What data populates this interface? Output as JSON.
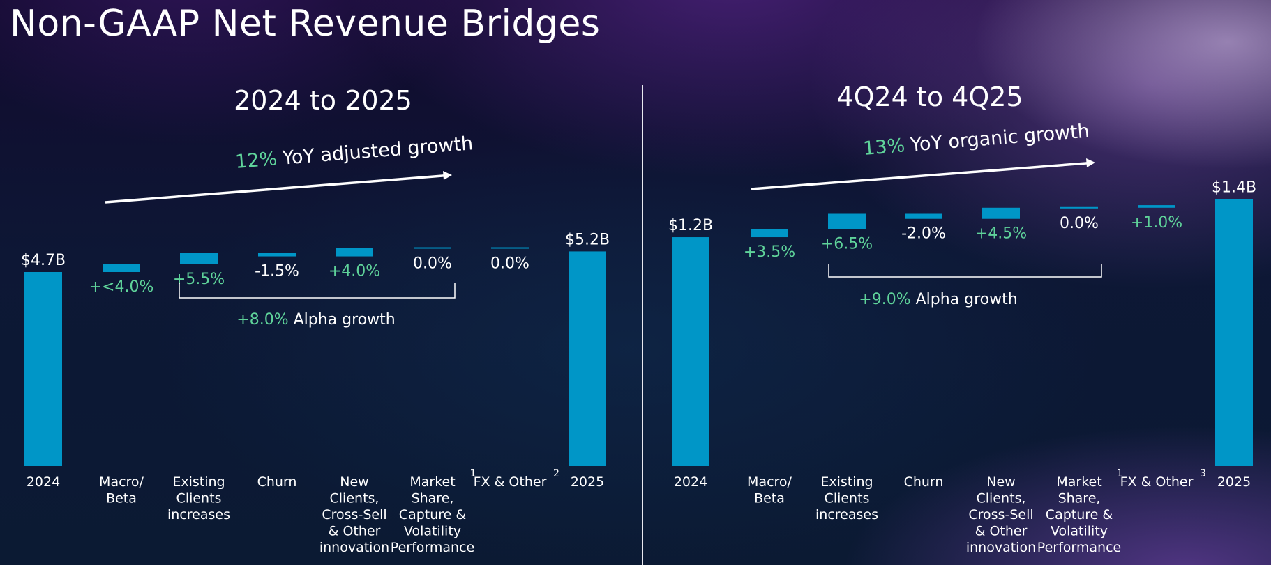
{
  "page": {
    "title": "Non-GAAP Net Revenue Bridges"
  },
  "colors": {
    "bar": "#0096c7",
    "positive_text": "#5fd39a",
    "neutral_text": "#ffffff",
    "divider": "#e8e8ef"
  },
  "chart_data": [
    {
      "type": "bar",
      "subtype": "waterfall",
      "title": "2024 to 2025",
      "growth_annotation": {
        "value": "12%",
        "text": "YoY adjusted growth"
      },
      "bracket_annotation": {
        "value": "+8.0%",
        "text": "Alpha growth",
        "spans": [
          "Existing Clients increases",
          "Market Share, Capture & Volatility Performance"
        ]
      },
      "categories": [
        {
          "label": [
            "2024"
          ],
          "sup": ""
        },
        {
          "label": [
            "Macro/",
            "Beta"
          ],
          "sup": ""
        },
        {
          "label": [
            "Existing",
            "Clients",
            "increases"
          ],
          "sup": ""
        },
        {
          "label": [
            "Churn"
          ],
          "sup": ""
        },
        {
          "label": [
            "New",
            "Clients,",
            "Cross-Sell",
            "& Other",
            "innovation"
          ],
          "sup": ""
        },
        {
          "label": [
            "Market",
            "Share,",
            "Capture &",
            "Volatility",
            "Performance"
          ],
          "sup": "1"
        },
        {
          "label": [
            "FX & Other"
          ],
          "sup": "2"
        },
        {
          "label": [
            "2025"
          ],
          "sup": ""
        }
      ],
      "steps": [
        {
          "kind": "total",
          "value": 4.7,
          "label": "$4.7B"
        },
        {
          "kind": "delta",
          "pct": 4.0,
          "label": "+<4.0%",
          "positive": true
        },
        {
          "kind": "delta",
          "pct": 5.5,
          "label": "+5.5%",
          "positive": true
        },
        {
          "kind": "delta",
          "pct": -1.5,
          "label": "-1.5%",
          "positive": false
        },
        {
          "kind": "delta",
          "pct": 4.0,
          "label": "+4.0%",
          "positive": true
        },
        {
          "kind": "delta",
          "pct": 0.0,
          "label": "0.0%",
          "positive": false
        },
        {
          "kind": "delta",
          "pct": 0.0,
          "label": "0.0%",
          "positive": false
        },
        {
          "kind": "total",
          "value": 5.2,
          "label": "$5.2B"
        }
      ]
    },
    {
      "type": "bar",
      "subtype": "waterfall",
      "title": "4Q24 to 4Q25",
      "growth_annotation": {
        "value": "13%",
        "text": "YoY organic growth"
      },
      "bracket_annotation": {
        "value": "+9.0%",
        "text": "Alpha growth",
        "spans": [
          "Existing Clients increases",
          "Market Share, Capture & Volatility Performance"
        ]
      },
      "categories": [
        {
          "label": [
            "2024"
          ],
          "sup": ""
        },
        {
          "label": [
            "Macro/",
            "Beta"
          ],
          "sup": ""
        },
        {
          "label": [
            "Existing",
            "Clients",
            "increases"
          ],
          "sup": ""
        },
        {
          "label": [
            "Churn"
          ],
          "sup": ""
        },
        {
          "label": [
            "New",
            "Clients,",
            "Cross-Sell",
            "& Other",
            "innovation"
          ],
          "sup": ""
        },
        {
          "label": [
            "Market",
            "Share,",
            "Capture &",
            "Volatility",
            "Performance"
          ],
          "sup": "1"
        },
        {
          "label": [
            "FX & Other"
          ],
          "sup": "3"
        },
        {
          "label": [
            "2025"
          ],
          "sup": ""
        }
      ],
      "steps": [
        {
          "kind": "total",
          "value": 1.2,
          "label": "$1.2B"
        },
        {
          "kind": "delta",
          "pct": 3.5,
          "label": "+3.5%",
          "positive": true
        },
        {
          "kind": "delta",
          "pct": 6.5,
          "label": "+6.5%",
          "positive": true
        },
        {
          "kind": "delta",
          "pct": -2.0,
          "label": "-2.0%",
          "positive": false
        },
        {
          "kind": "delta",
          "pct": 4.5,
          "label": "+4.5%",
          "positive": true
        },
        {
          "kind": "delta",
          "pct": 0.0,
          "label": "0.0%",
          "positive": false
        },
        {
          "kind": "delta",
          "pct": 1.0,
          "label": "+1.0%",
          "positive": true
        },
        {
          "kind": "total",
          "value": 1.4,
          "label": "$1.4B"
        }
      ]
    }
  ]
}
